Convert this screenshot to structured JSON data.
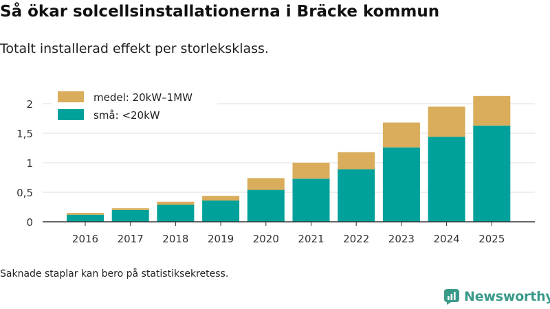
{
  "header": {
    "title": "Så ökar solcellsinstallationerna i Bräcke kommun",
    "subtitle": "Totalt installerad effekt per storleksklass."
  },
  "footer": {
    "note": "Saknade staplar kan bero på statistiksekretess.",
    "brand": "Newsworthy"
  },
  "colors": {
    "small": "#00a19a",
    "medium": "#d9ad5b",
    "axis": "#333333",
    "grid": "#dddddd",
    "brand": "#3a9a8a"
  },
  "chart_data": {
    "type": "bar",
    "stacked": true,
    "title": "Så ökar solcellsinstallationerna i Bräcke kommun",
    "subtitle": "Totalt installerad effekt per storleksklass.",
    "xlabel": "",
    "ylabel": "",
    "categories": [
      "2016",
      "2017",
      "2018",
      "2019",
      "2020",
      "2021",
      "2022",
      "2023",
      "2024",
      "2025"
    ],
    "series": [
      {
        "name": "små: <20kW",
        "color": "#00a19a",
        "values": [
          0.12,
          0.2,
          0.29,
          0.36,
          0.54,
          0.73,
          0.89,
          1.26,
          1.44,
          1.63
        ]
      },
      {
        "name": "medel: 20kW–1MW",
        "color": "#d9ad5b",
        "values": [
          0.03,
          0.03,
          0.05,
          0.08,
          0.2,
          0.27,
          0.29,
          0.42,
          0.51,
          0.5
        ]
      }
    ],
    "legend_order": [
      "medel: 20kW–1MW",
      "små: <20kW"
    ],
    "legend_position": "top-left",
    "yticks": [
      0,
      0.5,
      1,
      1.5,
      2
    ],
    "ytick_labels": [
      "0",
      "0,5",
      "1",
      "1,5",
      "2"
    ],
    "ylim": [
      0,
      2.2
    ],
    "grid": true
  }
}
